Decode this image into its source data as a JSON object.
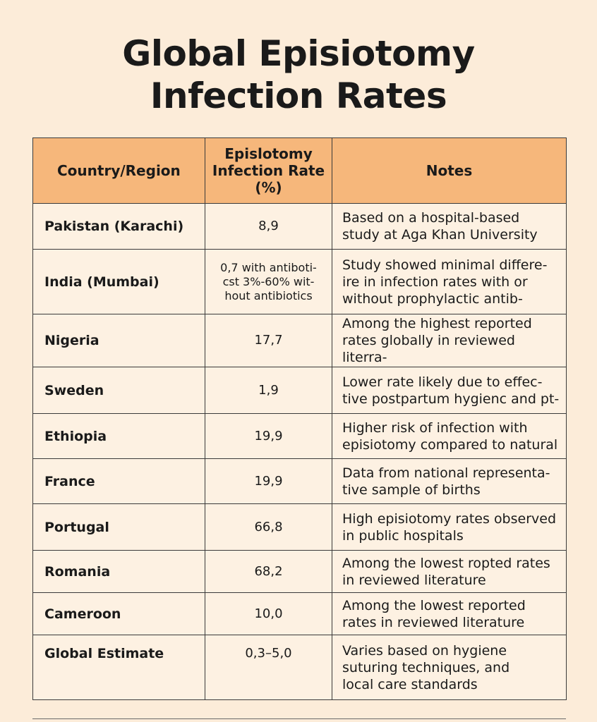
{
  "title": {
    "line1": "Global Episiotomy",
    "line2": "Infection Rates"
  },
  "table": {
    "headers": {
      "country": "Country/Region",
      "rate_line1": "Epislotomy",
      "rate_line2": "Infection Rate",
      "rate_line3": "(%)",
      "notes": "Notes"
    },
    "rows": [
      {
        "country": "Pakistan (Karachi)",
        "rate": [
          "8,9"
        ],
        "notes": [
          "Based on a hospital-based",
          "study at Aga Khan University"
        ]
      },
      {
        "country": "India (Mumbai)",
        "rate": [
          "0,7 with antiboti-",
          "cst 3%-60% wit-",
          "hout antibiotics"
        ],
        "notes": [
          "Study showed minimal differe-",
          "ire in infection rates with or",
          "without prophylactic antib-"
        ]
      },
      {
        "country": "Nigeria",
        "rate": [
          "17,7"
        ],
        "notes": [
          "Among the highest reported",
          "rates globally in reviewed literra-"
        ]
      },
      {
        "country": "Sweden",
        "rate": [
          "1,9"
        ],
        "notes": [
          "Lower rate likely due to effec-",
          "tive postpartum hygienc and pt-"
        ]
      },
      {
        "country": "Ethiopia",
        "rate": [
          "19,9"
        ],
        "notes": [
          "Higher risk of infection with",
          "episiotomy compared to natural"
        ]
      },
      {
        "country": "France",
        "rate": [
          "19,9"
        ],
        "notes": [
          "Data from national representa-",
          "tive sample of births"
        ]
      },
      {
        "country": "Portugal",
        "rate": [
          "66,8"
        ],
        "notes": [
          "High episiotomy rates observed",
          "in public hospitals"
        ]
      },
      {
        "country": "Romania",
        "rate": [
          "68,2"
        ],
        "notes": [
          "Among the lowest ropted rates",
          "in reviewed literature"
        ]
      },
      {
        "country": "Cameroon",
        "rate": [
          "10,0"
        ],
        "notes": [
          "Among the lowest reported",
          "rates in reviewed literature"
        ]
      },
      {
        "country": "Global Estimate",
        "rate": [
          "0,3–5,0"
        ],
        "notes": [
          "Varies based on hygiene",
          "suturing techniques, and",
          "local care standards"
        ]
      }
    ]
  }
}
